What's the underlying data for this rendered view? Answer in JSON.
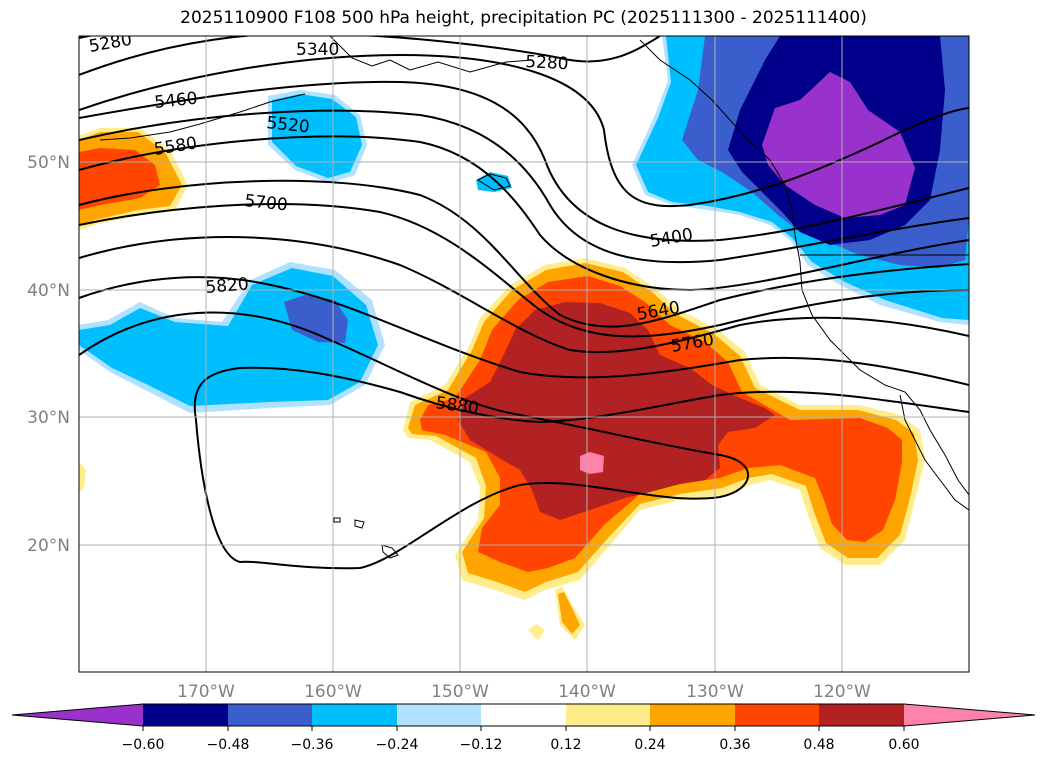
{
  "title": "2025110900 F108 500 hPa height, precipitation PC (2025111300 - 2025111400)",
  "map": {
    "lat_ticks": [
      "50°N",
      "40°N",
      "30°N",
      "20°N"
    ],
    "lon_ticks": [
      "170°W",
      "160°W",
      "150°W",
      "140°W",
      "130°W",
      "120°W"
    ],
    "contour_labels": [
      "5280",
      "5340",
      "5280",
      "5460",
      "5520",
      "5580",
      "5700",
      "5400",
      "5820",
      "5640",
      "5760",
      "5880"
    ]
  },
  "colorbar": {
    "labels": [
      "−0.60",
      "−0.48",
      "−0.36",
      "−0.24",
      "−0.12",
      "0.12",
      "0.24",
      "0.36",
      "0.48",
      "0.60"
    ],
    "colors": [
      "#9932cc",
      "#00008b",
      "#3a5fcd",
      "#00bfff",
      "#b0e2ff",
      "#ffffff",
      "#ffec8b",
      "#ffa500",
      "#ff4500",
      "#b22222",
      "#ff82ab"
    ]
  },
  "colors": {
    "contour_line": "#000000",
    "grid": "#b0b0b0",
    "coastline": "#000000"
  }
}
